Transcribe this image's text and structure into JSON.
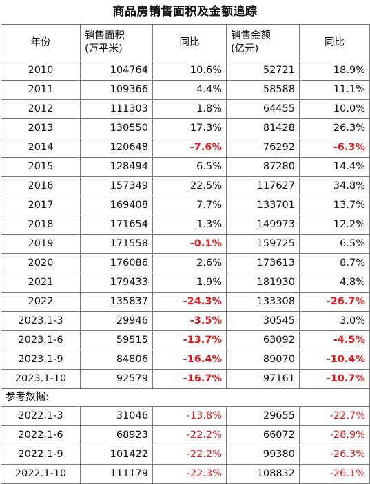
{
  "title": "商品房销售面积及金额追踪",
  "headers": {
    "year": "年份",
    "area_line1": "销售面积",
    "area_line2": "(万平米)",
    "yoy1": "同比",
    "amount_line1": "销售金额",
    "amount_line2": "(亿元)",
    "yoy2": "同比"
  },
  "rows": [
    {
      "year": "2010",
      "area": "104764",
      "area_yoy": "10.6%",
      "amount": "52721",
      "amount_yoy": "18.9%",
      "area_neg": false,
      "amount_neg": false
    },
    {
      "year": "2011",
      "area": "109366",
      "area_yoy": "4.4%",
      "amount": "58588",
      "amount_yoy": "11.1%",
      "area_neg": false,
      "amount_neg": false
    },
    {
      "year": "2012",
      "area": "111303",
      "area_yoy": "1.8%",
      "amount": "64455",
      "amount_yoy": "10.0%",
      "area_neg": false,
      "amount_neg": false
    },
    {
      "year": "2013",
      "area": "130550",
      "area_yoy": "17.3%",
      "amount": "81428",
      "amount_yoy": "26.3%",
      "area_neg": false,
      "amount_neg": false
    },
    {
      "year": "2014",
      "area": "120648",
      "area_yoy": "-7.6%",
      "amount": "76292",
      "amount_yoy": "-6.3%",
      "area_neg": true,
      "amount_neg": true
    },
    {
      "year": "2015",
      "area": "128494",
      "area_yoy": "6.5%",
      "amount": "87280",
      "amount_yoy": "14.4%",
      "area_neg": false,
      "amount_neg": false
    },
    {
      "year": "2016",
      "area": "157349",
      "area_yoy": "22.5%",
      "amount": "117627",
      "amount_yoy": "34.8%",
      "area_neg": false,
      "amount_neg": false
    },
    {
      "year": "2017",
      "area": "169408",
      "area_yoy": "7.7%",
      "amount": "133701",
      "amount_yoy": "13.7%",
      "area_neg": false,
      "amount_neg": false
    },
    {
      "year": "2018",
      "area": "171654",
      "area_yoy": "1.3%",
      "amount": "149973",
      "amount_yoy": "12.2%",
      "area_neg": false,
      "amount_neg": false
    },
    {
      "year": "2019",
      "area": "171558",
      "area_yoy": "-0.1%",
      "amount": "159725",
      "amount_yoy": "6.5%",
      "area_neg": true,
      "amount_neg": false
    },
    {
      "year": "2020",
      "area": "176086",
      "area_yoy": "2.6%",
      "amount": "173613",
      "amount_yoy": "8.7%",
      "area_neg": false,
      "amount_neg": false
    },
    {
      "year": "2021",
      "area": "179433",
      "area_yoy": "1.9%",
      "amount": "181930",
      "amount_yoy": "4.8%",
      "area_neg": false,
      "amount_neg": false
    },
    {
      "year": "2022",
      "area": "135837",
      "area_yoy": "-24.3%",
      "amount": "133308",
      "amount_yoy": "-26.7%",
      "area_neg": true,
      "amount_neg": true
    },
    {
      "year": "2023.1-3",
      "area": "29946",
      "area_yoy": "-3.5%",
      "amount": "30545",
      "amount_yoy": "3.0%",
      "area_neg": true,
      "amount_neg": false
    },
    {
      "year": "2023.1-6",
      "area": "59515",
      "area_yoy": "-13.7%",
      "amount": "63092",
      "amount_yoy": "-4.5%",
      "area_neg": true,
      "amount_neg": true
    },
    {
      "year": "2023.1-9",
      "area": "84806",
      "area_yoy": "-16.4%",
      "amount": "89070",
      "amount_yoy": "-10.4%",
      "area_neg": true,
      "amount_neg": true
    },
    {
      "year": "2023.1-10",
      "area": "92579",
      "area_yoy": "-16.7%",
      "amount": "97161",
      "amount_yoy": "-10.7%",
      "area_neg": true,
      "amount_neg": true
    }
  ],
  "reference_label": "参考数据:",
  "reference_rows": [
    {
      "year": "2022.1-3",
      "area": "31046",
      "area_yoy": "-13.8%",
      "amount": "29655",
      "amount_yoy": "-22.7%"
    },
    {
      "year": "2022.1-6",
      "area": "68923",
      "area_yoy": "-22.2%",
      "amount": "66072",
      "amount_yoy": "-28.9%"
    },
    {
      "year": "2022.1-9",
      "area": "101422",
      "area_yoy": "-22.2%",
      "amount": "99380",
      "amount_yoy": "-26.3%"
    },
    {
      "year": "2022.1-10",
      "area": "111179",
      "area_yoy": "-22.3%",
      "amount": "108832",
      "amount_yoy": "-26.1%"
    }
  ],
  "colors": {
    "negative": "#e01a1a",
    "border": "#7a7a7a",
    "text": "#111111"
  }
}
